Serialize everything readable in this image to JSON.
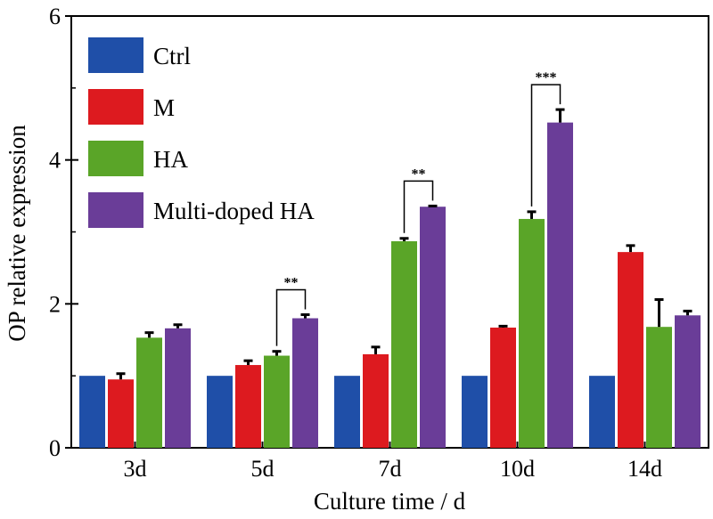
{
  "chart_data": {
    "type": "bar",
    "xlabel": "Culture time / d",
    "ylabel": "OP relative expression",
    "ylim": [
      0,
      6
    ],
    "yticks": [
      "0",
      "2",
      "4",
      "6"
    ],
    "categories": [
      "3d",
      "5d",
      "7d",
      "10d",
      "14d"
    ],
    "legend_position": "top-left",
    "grid": false,
    "series": [
      {
        "name": "Ctrl",
        "color": "#1f4fa8",
        "values": [
          1.0,
          1.0,
          1.0,
          1.0,
          1.0
        ],
        "errors": [
          0,
          0,
          0,
          0,
          0
        ]
      },
      {
        "name": "M",
        "color": "#dd1a1f",
        "values": [
          0.95,
          1.15,
          1.3,
          1.67,
          2.72
        ],
        "errors": [
          0.08,
          0.06,
          0.1,
          0.02,
          0.09
        ]
      },
      {
        "name": "HA",
        "color": "#5aa528",
        "values": [
          1.53,
          1.28,
          2.87,
          3.18,
          1.68
        ],
        "errors": [
          0.07,
          0.06,
          0.04,
          0.1,
          0.38
        ]
      },
      {
        "name": "Multi-doped HA",
        "color": "#6a3d98",
        "values": [
          1.66,
          1.8,
          3.35,
          4.52,
          1.84
        ],
        "errors": [
          0.05,
          0.05,
          0.01,
          0.18,
          0.06
        ]
      }
    ],
    "significance": [
      {
        "category": "5d",
        "from_series": 2,
        "to_series": 3,
        "label": "**"
      },
      {
        "category": "7d",
        "from_series": 2,
        "to_series": 3,
        "label": "**"
      },
      {
        "category": "10d",
        "from_series": 2,
        "to_series": 3,
        "label": "***"
      }
    ]
  }
}
